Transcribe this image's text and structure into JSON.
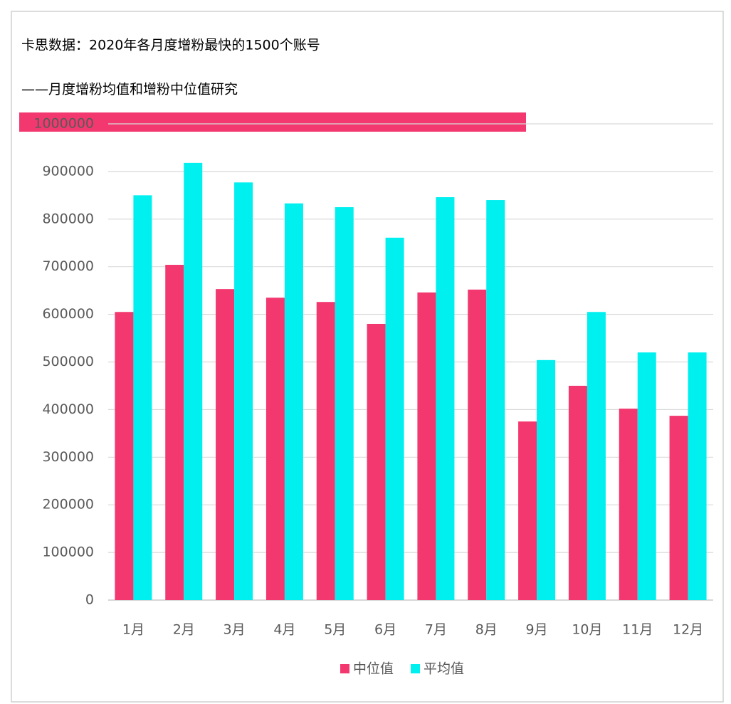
{
  "chart_data": {
    "type": "bar",
    "title": "卡思数据：2020年各月度增粉最快的1500个账号",
    "subtitle": "——月度增粉均值和增粉中位值研究",
    "categories": [
      "1月",
      "2月",
      "3月",
      "4月",
      "5月",
      "6月",
      "7月",
      "8月",
      "9月",
      "10月",
      "11月",
      "12月"
    ],
    "series": [
      {
        "name": "中位值",
        "color": "#f2386f",
        "values": [
          605000,
          704000,
          653000,
          635000,
          626000,
          580000,
          646000,
          652000,
          375000,
          450000,
          402000,
          387000
        ]
      },
      {
        "name": "平均值",
        "color": "#00f0f0",
        "values": [
          850000,
          918000,
          877000,
          833000,
          825000,
          761000,
          846000,
          840000,
          504000,
          605000,
          520000,
          520000
        ]
      }
    ],
    "ylim": [
      0,
      1000000
    ],
    "yticks": [
      0,
      100000,
      200000,
      300000,
      400000,
      500000,
      600000,
      700000,
      800000,
      900000,
      1000000
    ],
    "grid": true,
    "legend": "bottom"
  }
}
